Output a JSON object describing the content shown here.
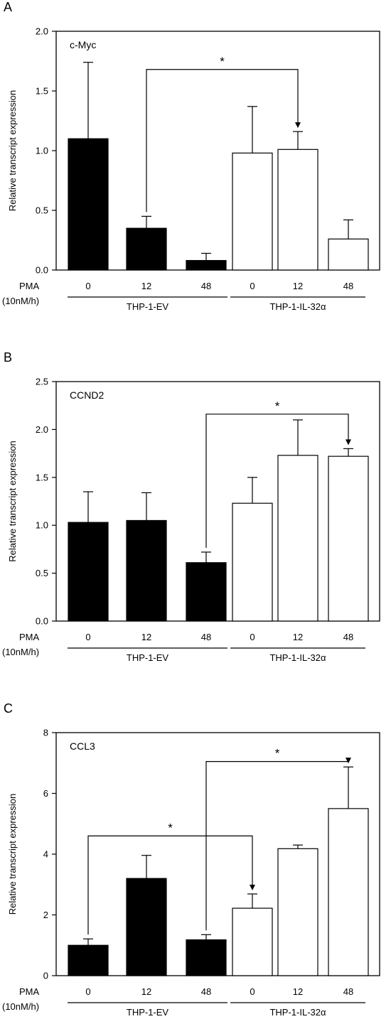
{
  "chart_data": [
    {
      "type": "bar",
      "panel_label": "A",
      "gene": "c-Myc",
      "ylabel": "Relative transcript expression",
      "ylim": [
        0,
        2.0
      ],
      "yticks": [
        "0.0",
        "0.5",
        "1.0",
        "1.5",
        "2.0"
      ],
      "pma_label": "PMA",
      "pma_unit": "(10nM/h)",
      "categories": [
        "0",
        "12",
        "48",
        "0",
        "12",
        "48"
      ],
      "groups": [
        "THP-1-EV",
        "THP-1-IL-32α"
      ],
      "values": [
        1.1,
        0.35,
        0.08,
        0.98,
        1.01,
        0.26
      ],
      "errors": [
        0.64,
        0.1,
        0.06,
        0.39,
        0.15,
        0.16
      ],
      "fill": [
        "#000000",
        "#000000",
        "#000000",
        "#ffffff",
        "#ffffff",
        "#ffffff"
      ],
      "significance": [
        {
          "from": 1,
          "to": 4,
          "label": "*",
          "level": 1.68
        }
      ]
    },
    {
      "type": "bar",
      "panel_label": "B",
      "gene": "CCND2",
      "ylabel": "Relative transcript expression",
      "ylim": [
        0,
        2.5
      ],
      "yticks": [
        "0.0",
        "0.5",
        "1.0",
        "1.5",
        "2.0",
        "2.5"
      ],
      "pma_label": "PMA",
      "pma_unit": "(10nM/h)",
      "categories": [
        "0",
        "12",
        "48",
        "0",
        "12",
        "48"
      ],
      "groups": [
        "THP-1-EV",
        "THP-1-IL-32α"
      ],
      "values": [
        1.03,
        1.05,
        0.61,
        1.23,
        1.73,
        1.72
      ],
      "errors": [
        0.32,
        0.29,
        0.11,
        0.27,
        0.37,
        0.08
      ],
      "fill": [
        "#000000",
        "#000000",
        "#000000",
        "#ffffff",
        "#ffffff",
        "#ffffff"
      ],
      "significance": [
        {
          "from": 2,
          "to": 5,
          "label": "*",
          "level": 2.16
        }
      ]
    },
    {
      "type": "bar",
      "panel_label": "C",
      "gene": "CCL3",
      "ylabel": "Relative transcript expression",
      "ylim": [
        0,
        8
      ],
      "yticks": [
        "0",
        "2",
        "4",
        "6",
        "8"
      ],
      "pma_label": "PMA",
      "pma_unit": "(10nM/h)",
      "categories": [
        "0",
        "12",
        "48",
        "0",
        "12",
        "48"
      ],
      "groups": [
        "THP-1-EV",
        "THP-1-IL-32α"
      ],
      "values": [
        1.0,
        3.2,
        1.18,
        2.22,
        4.18,
        5.5
      ],
      "errors": [
        0.21,
        0.76,
        0.17,
        0.47,
        0.12,
        1.37
      ],
      "fill": [
        "#000000",
        "#000000",
        "#000000",
        "#ffffff",
        "#ffffff",
        "#ffffff"
      ],
      "significance": [
        {
          "from": 0,
          "to": 3,
          "label": "*",
          "level": 4.6
        },
        {
          "from": 2,
          "to": 5,
          "label": "*",
          "level": 7.05
        }
      ]
    }
  ]
}
